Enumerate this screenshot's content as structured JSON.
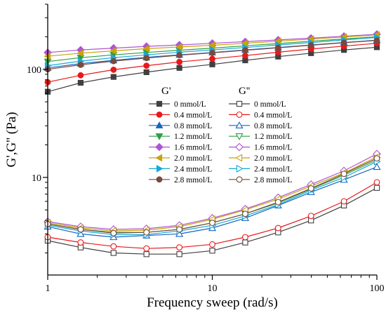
{
  "chart_data": {
    "type": "line",
    "xlabel": "Frequency sweep (rad/s)",
    "ylabel": "G',G'' (Pa)",
    "x_scale": "log",
    "y_scale": "log",
    "xlim": [
      1,
      100
    ],
    "ylim": [
      1.25,
      400
    ],
    "x_ticks": [
      1,
      10,
      100
    ],
    "x_tick_labels": [
      "1",
      "10",
      "100"
    ],
    "y_ticks": [
      10,
      100
    ],
    "y_tick_labels": [
      "10",
      "100"
    ],
    "grid": false,
    "legend_placement": "center",
    "legend_headers": [
      "G'",
      "G''"
    ],
    "x": [
      1,
      1.585,
      2.512,
      3.981,
      6.31,
      10,
      15.85,
      25.12,
      39.81,
      63.1,
      100
    ],
    "series": [
      {
        "name": "0 mmol/L",
        "group": "G'",
        "color": "#404040",
        "marker": "square",
        "filled": true,
        "values": [
          62,
          75,
          85,
          94,
          103,
          111,
          121,
          131,
          141,
          151,
          160
        ]
      },
      {
        "name": "0.4 mmol/L",
        "group": "G'",
        "color": "#e8191b",
        "marker": "circle",
        "filled": true,
        "values": [
          76,
          88,
          99,
          108,
          117,
          125,
          134,
          144,
          154,
          164,
          174
        ]
      },
      {
        "name": "0.8 mmol/L",
        "group": "G'",
        "color": "#1565c0",
        "marker": "triangle-up",
        "filled": true,
        "values": [
          103,
          113,
          121,
          129,
          136,
          143,
          151,
          159,
          168,
          177,
          186
        ]
      },
      {
        "name": "1.2 mmol/L",
        "group": "G'",
        "color": "#2e9e44",
        "marker": "triangle-down",
        "filled": true,
        "values": [
          118,
          128,
          136,
          143,
          150,
          157,
          165,
          173,
          182,
          191,
          200
        ]
      },
      {
        "name": "1.6 mmol/L",
        "group": "G'",
        "color": "#b055cf",
        "marker": "diamond",
        "filled": true,
        "values": [
          143,
          151,
          157,
          163,
          168,
          174,
          180,
          187,
          194,
          202,
          211
        ]
      },
      {
        "name": "2.0 mmol/L",
        "group": "G'",
        "color": "#c9a20c",
        "marker": "triangle-left",
        "filled": true,
        "values": [
          132,
          141,
          148,
          155,
          161,
          167,
          174,
          182,
          190,
          199,
          208
        ]
      },
      {
        "name": "2.4 mmol/L",
        "group": "G'",
        "color": "#19a9d6",
        "marker": "triangle-right",
        "filled": true,
        "values": [
          108,
          119,
          128,
          136,
          144,
          151,
          159,
          168,
          177,
          187,
          197
        ]
      },
      {
        "name": "2.8 mmol/L",
        "group": "G'",
        "color": "#7a4a3c",
        "marker": "circle",
        "filled": true,
        "values": [
          100,
          110,
          119,
          127,
          135,
          142,
          150,
          158,
          167,
          176,
          185
        ]
      },
      {
        "name": "0 mmol/L",
        "group": "G''",
        "color": "#404040",
        "marker": "square",
        "filled": false,
        "values": [
          2.6,
          2.25,
          2.0,
          1.95,
          1.95,
          2.1,
          2.5,
          3.1,
          4.0,
          5.5,
          8.0
        ]
      },
      {
        "name": "0.4 mmol/L",
        "group": "G''",
        "color": "#e8191b",
        "marker": "circle",
        "filled": false,
        "values": [
          2.8,
          2.5,
          2.3,
          2.2,
          2.25,
          2.4,
          2.8,
          3.4,
          4.4,
          6.0,
          9.0
        ]
      },
      {
        "name": "0.8 mmol/L",
        "group": "G''",
        "color": "#1565c0",
        "marker": "triangle-up",
        "filled": false,
        "values": [
          3.5,
          3.0,
          2.8,
          2.9,
          3.0,
          3.4,
          4.2,
          5.5,
          7.3,
          9.5,
          12.5
        ]
      },
      {
        "name": "1.2 mmol/L",
        "group": "G''",
        "color": "#2e9e44",
        "marker": "triangle-down",
        "filled": false,
        "values": [
          3.7,
          3.3,
          3.1,
          3.1,
          3.3,
          3.8,
          4.6,
          5.8,
          7.8,
          10.5,
          14.5
        ]
      },
      {
        "name": "1.6 mmol/L",
        "group": "G''",
        "color": "#b055cf",
        "marker": "diamond",
        "filled": false,
        "values": [
          3.9,
          3.5,
          3.3,
          3.35,
          3.6,
          4.2,
          5.1,
          6.5,
          8.6,
          11.5,
          16.5
        ]
      },
      {
        "name": "2.0 mmol/L",
        "group": "G''",
        "color": "#c9a20c",
        "marker": "triangle-left",
        "filled": false,
        "values": [
          3.8,
          3.4,
          3.2,
          3.25,
          3.5,
          4.1,
          5.0,
          6.3,
          8.3,
          11.0,
          15.5
        ]
      },
      {
        "name": "2.4 mmol/L",
        "group": "G''",
        "color": "#19a9d6",
        "marker": "triangle-right",
        "filled": false,
        "values": [
          3.6,
          3.2,
          2.95,
          2.95,
          3.2,
          3.6,
          4.4,
          5.6,
          7.6,
          10.0,
          14.0
        ]
      },
      {
        "name": "2.8 mmol/L",
        "group": "G''",
        "color": "#7a4a3c",
        "marker": "circle",
        "filled": false,
        "values": [
          3.7,
          3.3,
          3.05,
          3.1,
          3.3,
          3.8,
          4.6,
          5.9,
          7.9,
          10.8,
          15.0
        ]
      }
    ]
  }
}
